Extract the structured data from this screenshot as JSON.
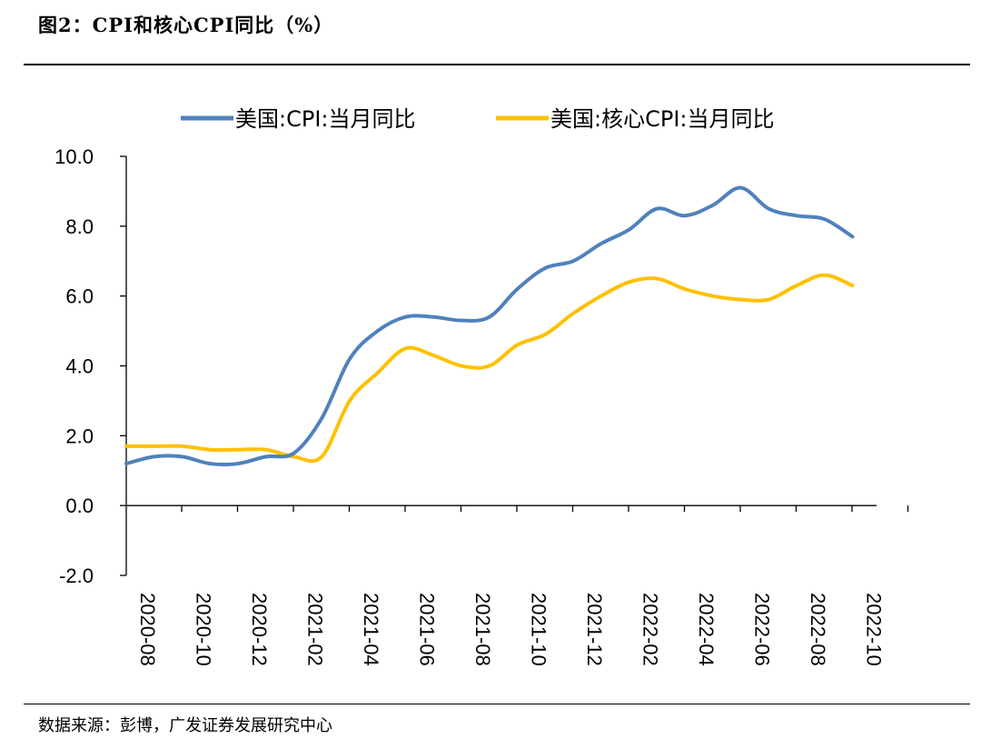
{
  "figure": {
    "title": "图2：CPI和核心CPI同比（%）",
    "source": "数据来源：彭博，广发证券发展研究中心"
  },
  "colors": {
    "cpi": "#4f81bd",
    "core": "#ffc000",
    "axis": "#000000"
  },
  "chart_data": {
    "type": "line",
    "ylim": [
      -2,
      10
    ],
    "yticks": [
      "-2.0",
      "0.0",
      "2.0",
      "4.0",
      "6.0",
      "8.0",
      "10.0"
    ],
    "xtick_labels": [
      "2020-08",
      "2020-10",
      "2020-12",
      "2021-02",
      "2021-04",
      "2021-06",
      "2021-08",
      "2021-10",
      "2021-12",
      "2022-02",
      "2022-04",
      "2022-06",
      "2022-08",
      "2022-10"
    ],
    "months": [
      "2020-08",
      "2020-09",
      "2020-10",
      "2020-11",
      "2020-12",
      "2021-01",
      "2021-02",
      "2021-03",
      "2021-04",
      "2021-05",
      "2021-06",
      "2021-07",
      "2021-08",
      "2021-09",
      "2021-10",
      "2021-11",
      "2021-12",
      "2022-01",
      "2022-02",
      "2022-03",
      "2022-04",
      "2022-05",
      "2022-06",
      "2022-07",
      "2022-08",
      "2022-09",
      "2022-10"
    ],
    "legend_position": "top",
    "series": [
      {
        "name": "美国:CPI:当月同比",
        "color": "#4f81bd",
        "values": [
          1.2,
          1.4,
          1.4,
          1.2,
          1.2,
          1.4,
          1.5,
          2.5,
          4.2,
          5.0,
          5.4,
          5.4,
          5.3,
          5.4,
          6.2,
          6.8,
          7.0,
          7.5,
          7.9,
          8.5,
          8.3,
          8.6,
          9.1,
          8.5,
          8.3,
          8.2,
          7.7
        ]
      },
      {
        "name": "美国:核心CPI:当月同比",
        "color": "#ffc000",
        "values": [
          1.7,
          1.7,
          1.7,
          1.6,
          1.6,
          1.6,
          1.4,
          1.4,
          3.0,
          3.8,
          4.5,
          4.3,
          4.0,
          4.0,
          4.6,
          4.9,
          5.5,
          6.0,
          6.4,
          6.5,
          6.2,
          6.0,
          5.9,
          5.9,
          6.3,
          6.6,
          6.3
        ]
      }
    ]
  }
}
